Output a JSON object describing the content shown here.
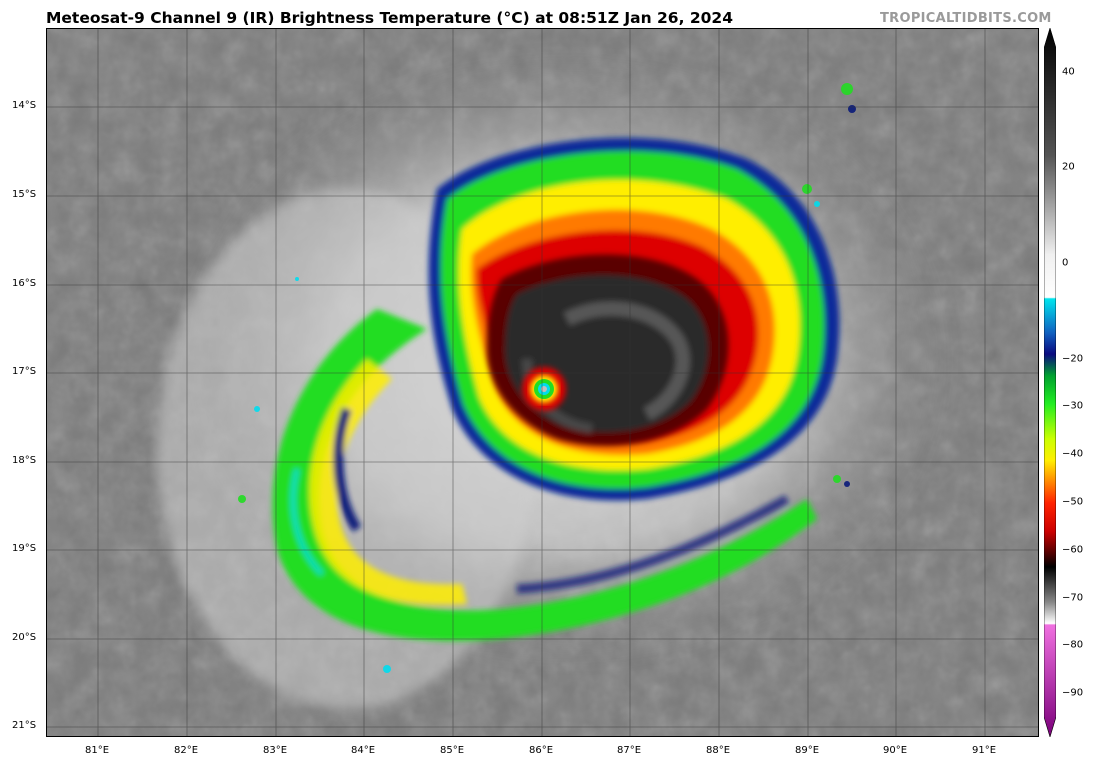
{
  "title": "Meteosat-9 Channel 9 (IR) Brightness Temperature (°C) at 08:51Z Jan 26, 2024",
  "watermark": "TROPICALTIDBITS.COM",
  "latitude_labels": [
    "14°S",
    "15°S",
    "16°S",
    "17°S",
    "18°S",
    "19°S",
    "20°S",
    "21°S"
  ],
  "longitude_labels": [
    "81°E",
    "82°E",
    "83°E",
    "84°E",
    "85°E",
    "86°E",
    "87°E",
    "88°E",
    "89°E",
    "90°E",
    "91°E"
  ],
  "colorbar": {
    "ticks": [
      "40",
      "20",
      "0",
      "−20",
      "−30",
      "−40",
      "−50",
      "−60",
      "−70",
      "−80",
      "−90"
    ],
    "tick_values": [
      40,
      20,
      0,
      -20,
      -30,
      -40,
      -50,
      -60,
      -70,
      -80,
      -90
    ],
    "range": [
      -95,
      45
    ]
  },
  "colors": {
    "cloud_gray": "#7a7a7a",
    "cold_green": "#22dd22",
    "yellow": "#ffee00",
    "red": "#dd0000",
    "dark_red": "#5a0000",
    "cyan": "#00ddee",
    "navy": "#0a1a7a"
  }
}
